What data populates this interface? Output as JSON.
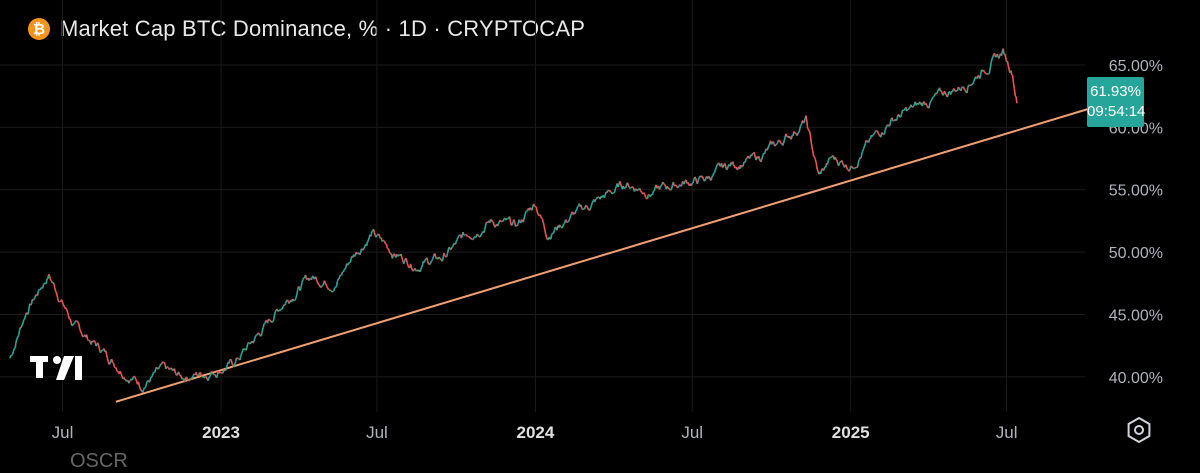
{
  "header": {
    "icon": "bitcoin-icon",
    "title": "Market Cap BTC Dominance, % · 1D · CRYPTOCAP"
  },
  "price_tag": {
    "value": "61.93%",
    "countdown": "09:54:14",
    "color": "#26a69a"
  },
  "footer_text": "OSCR",
  "colors": {
    "up": "#26a69a",
    "down": "#ef5350",
    "trendline": "#f0a070",
    "grid": "#1a1a1a",
    "axis_text": "#b0b3bb"
  },
  "chart_data": {
    "type": "line",
    "title": "Market Cap BTC Dominance, % · 1D · CRYPTOCAP",
    "ylabel": "",
    "xlabel": "",
    "y_ticks": [
      "40.00%",
      "45.00%",
      "50.00%",
      "55.00%",
      "60.00%",
      "65.00%"
    ],
    "x_ticks": [
      {
        "label": "Jul",
        "bold": false
      },
      {
        "label": "2023",
        "bold": true
      },
      {
        "label": "Jul",
        "bold": false
      },
      {
        "label": "2024",
        "bold": true
      },
      {
        "label": "Jul",
        "bold": false
      },
      {
        "label": "2025",
        "bold": true
      },
      {
        "label": "Jul",
        "bold": false
      }
    ],
    "ylim": [
      37.5,
      67.0
    ],
    "series": [
      {
        "x": [
          "2022-05-01",
          "2022-05-20",
          "2022-06-15",
          "2022-07-15",
          "2022-08-15",
          "2022-09-10",
          "2022-10-01",
          "2022-10-25",
          "2022-11-15",
          "2022-12-15",
          "2023-01-15",
          "2023-02-15",
          "2023-03-15",
          "2023-04-15",
          "2023-05-15",
          "2023-06-01",
          "2023-06-25",
          "2023-07-20",
          "2023-08-15",
          "2023-09-15",
          "2023-10-15",
          "2023-11-10",
          "2023-12-10",
          "2024-01-01",
          "2024-01-15",
          "2024-02-15",
          "2024-03-15",
          "2024-04-15",
          "2024-05-15",
          "2024-06-15",
          "2024-07-15",
          "2024-08-15",
          "2024-09-15",
          "2024-10-15",
          "2024-11-10",
          "2024-11-25",
          "2024-12-10",
          "2025-01-01",
          "2025-01-20",
          "2025-02-15",
          "2025-03-15",
          "2025-04-15",
          "2025-05-15",
          "2025-06-10",
          "2025-06-27",
          "2025-07-08",
          "2025-07-13"
        ],
        "values": [
          41.5,
          45.3,
          48.2,
          44.0,
          42.2,
          40.5,
          39.4,
          40.5,
          40.0,
          40.3,
          41.0,
          43.5,
          46.0,
          48.0,
          47.5,
          49.5,
          51.5,
          50.0,
          49.0,
          49.5,
          51.5,
          52.5,
          52.0,
          54.0,
          51.5,
          53.0,
          54.2,
          55.5,
          54.8,
          55.5,
          55.8,
          57.0,
          57.5,
          59.0,
          60.5,
          56.0,
          57.5,
          57.0,
          58.5,
          60.5,
          61.5,
          62.5,
          63.5,
          65.0,
          66.0,
          64.5,
          61.93
        ]
      }
    ],
    "trendline": {
      "x": [
        "2022-09-01",
        "2025-10-10"
      ],
      "y": [
        38.0,
        61.6
      ]
    }
  }
}
